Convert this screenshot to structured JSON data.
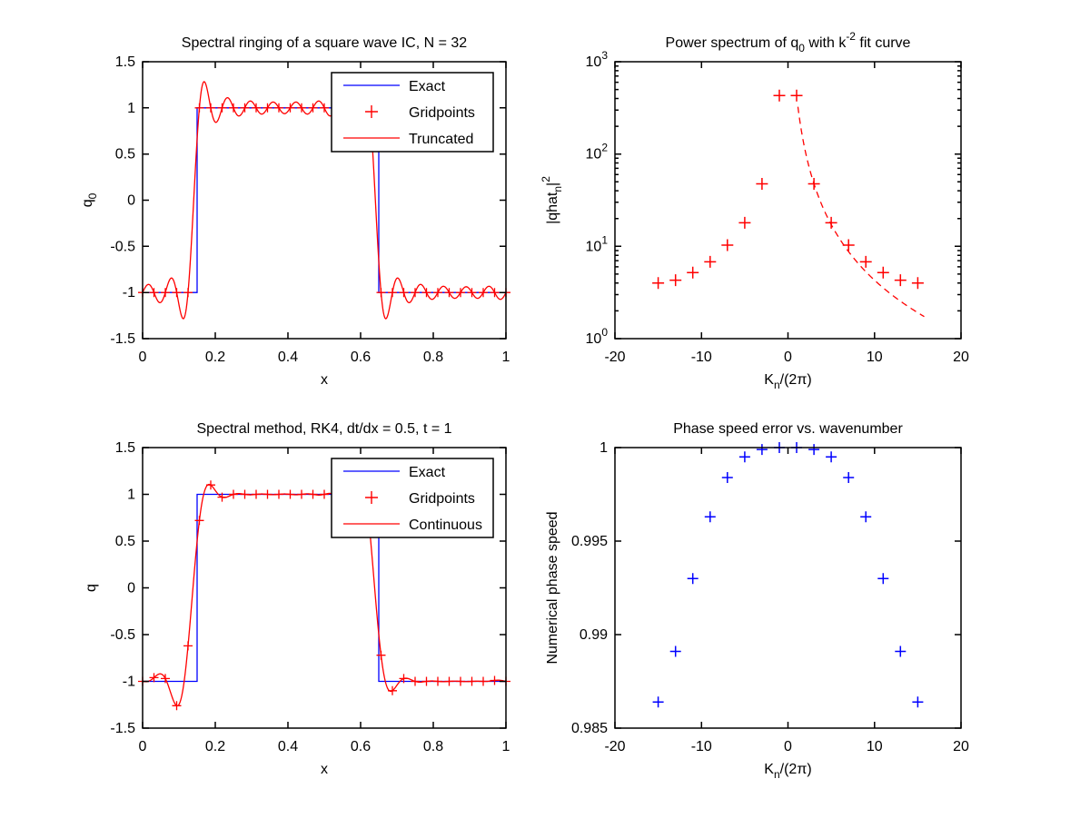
{
  "figure": {
    "background": "#ffffff",
    "axis_color": "#000000",
    "exact_color": "#0000ff",
    "numeric_color": "#ff0000",
    "phase_color": "#0000ff"
  },
  "chart_data": [
    {
      "id": "spectral-ringing",
      "position": "top-left",
      "type": "line",
      "title": [
        {
          "t": "Spectral ringing of a square wave IC, N = 32"
        }
      ],
      "xlabel": [
        {
          "t": "x"
        }
      ],
      "ylabel": [
        {
          "t": "q"
        },
        {
          "t": "0",
          "pos": "sub"
        }
      ],
      "xlim": [
        0,
        1
      ],
      "ylim": [
        -1.5,
        1.5
      ],
      "xticks": [
        {
          "v": 0,
          "l": "0"
        },
        {
          "v": 0.2,
          "l": "0.2"
        },
        {
          "v": 0.4,
          "l": "0.4"
        },
        {
          "v": 0.6,
          "l": "0.6"
        },
        {
          "v": 0.8,
          "l": "0.8"
        },
        {
          "v": 1,
          "l": "1"
        }
      ],
      "yticks": [
        {
          "v": -1.5,
          "l": "-1.5"
        },
        {
          "v": -1,
          "l": "-1"
        },
        {
          "v": -0.5,
          "l": "-0.5"
        },
        {
          "v": 0,
          "l": "0"
        },
        {
          "v": 0.5,
          "l": "0.5"
        },
        {
          "v": 1,
          "l": "1"
        },
        {
          "v": 1.5,
          "l": "1.5"
        }
      ],
      "grid_n": 32,
      "grid_samples": [
        -1,
        -1,
        -1,
        -1,
        -1,
        1,
        1,
        1,
        1,
        1,
        1,
        1,
        1,
        1,
        1,
        1,
        1,
        1,
        1,
        1,
        1,
        -1,
        -1,
        -1,
        -1,
        -1,
        -1,
        -1,
        -1,
        -1,
        -1,
        -1
      ],
      "series": [
        {
          "name": "Exact",
          "type": "polyline",
          "color": "#0000ff",
          "points": [
            [
              0,
              -1
            ],
            [
              0.15,
              -1
            ],
            [
              0.15,
              1
            ],
            [
              0.65,
              1
            ],
            [
              0.65,
              -1
            ],
            [
              1,
              -1
            ]
          ]
        },
        {
          "name": "Gridpoints",
          "type": "grid_markers",
          "marker": "plus",
          "size": 5,
          "color": "#ff0000"
        },
        {
          "name": "Truncated",
          "type": "grid_interp",
          "color": "#ff0000"
        }
      ],
      "legend": {
        "items": [
          {
            "label": "Exact",
            "swatch": "line",
            "color": "#0000ff"
          },
          {
            "label": "Gridpoints",
            "swatch": "plus",
            "color": "#ff0000"
          },
          {
            "label": "Truncated",
            "swatch": "line",
            "color": "#ff0000"
          }
        ]
      }
    },
    {
      "id": "power-spectrum",
      "position": "top-right",
      "type": "scatter",
      "title": [
        {
          "t": "Power spectrum of q"
        },
        {
          "t": "0",
          "pos": "sub"
        },
        {
          "t": " with k"
        },
        {
          "t": "-2",
          "pos": "sup"
        },
        {
          "t": " fit curve"
        }
      ],
      "xlabel": [
        {
          "t": "K"
        },
        {
          "t": "n",
          "pos": "sub"
        },
        {
          "t": "/(2π)"
        }
      ],
      "ylabel": [
        {
          "t": "|qhat"
        },
        {
          "t": "n",
          "pos": "sub"
        },
        {
          "t": "|"
        },
        {
          "t": "2",
          "pos": "sup"
        }
      ],
      "xlim": [
        -20,
        20
      ],
      "ylim": [
        1,
        1000
      ],
      "yscale": "log",
      "xticks": [
        {
          "v": -20,
          "l": "-20"
        },
        {
          "v": -10,
          "l": "-10"
        },
        {
          "v": 0,
          "l": "0"
        },
        {
          "v": 10,
          "l": "10"
        },
        {
          "v": 20,
          "l": "20"
        }
      ],
      "yticks": [
        {
          "v": 1,
          "segs": [
            {
              "t": "10"
            },
            {
              "t": "0",
              "pos": "sup"
            }
          ]
        },
        {
          "v": 10,
          "segs": [
            {
              "t": "10"
            },
            {
              "t": "1",
              "pos": "sup"
            }
          ]
        },
        {
          "v": 100,
          "segs": [
            {
              "t": "10"
            },
            {
              "t": "2",
              "pos": "sup"
            }
          ]
        },
        {
          "v": 1000,
          "segs": [
            {
              "t": "10"
            },
            {
              "t": "3",
              "pos": "sup"
            }
          ]
        }
      ],
      "series": [
        {
          "name": "spectrum-points",
          "type": "markers",
          "marker": "plus",
          "size": 6.5,
          "width": 1.5,
          "color": "#ff0000",
          "points": [
            [
              -15,
              4.0
            ],
            [
              -13,
              4.3
            ],
            [
              -11,
              5.2
            ],
            [
              -9,
              6.8
            ],
            [
              -7,
              10.3
            ],
            [
              -5,
              18
            ],
            [
              -3,
              47.5
            ],
            [
              -1,
              430
            ],
            [
              1,
              430
            ],
            [
              3,
              47.5
            ],
            [
              5,
              18
            ],
            [
              7,
              10.3
            ],
            [
              9,
              6.8
            ],
            [
              11,
              5.2
            ],
            [
              13,
              4.3
            ],
            [
              15,
              4.0
            ]
          ]
        },
        {
          "name": "k2-fit",
          "type": "power_fit",
          "color": "#ff0000",
          "dashed": true,
          "coefficient": 430,
          "exponent": -2,
          "k_range": [
            1.15,
            15.8
          ]
        }
      ]
    },
    {
      "id": "spectral-method",
      "position": "bottom-left",
      "type": "line",
      "title": [
        {
          "t": "Spectral method, RK4, dt/dx = 0.5, t = 1"
        }
      ],
      "xlabel": [
        {
          "t": "x"
        }
      ],
      "ylabel": [
        {
          "t": "q"
        }
      ],
      "xlim": [
        0,
        1
      ],
      "ylim": [
        -1.5,
        1.5
      ],
      "xticks": [
        {
          "v": 0,
          "l": "0"
        },
        {
          "v": 0.2,
          "l": "0.2"
        },
        {
          "v": 0.4,
          "l": "0.4"
        },
        {
          "v": 0.6,
          "l": "0.6"
        },
        {
          "v": 0.8,
          "l": "0.8"
        },
        {
          "v": 1,
          "l": "1"
        }
      ],
      "yticks": [
        {
          "v": -1.5,
          "l": "-1.5"
        },
        {
          "v": -1,
          "l": "-1"
        },
        {
          "v": -0.5,
          "l": "-0.5"
        },
        {
          "v": 0,
          "l": "0"
        },
        {
          "v": 0.5,
          "l": "0.5"
        },
        {
          "v": 1,
          "l": "1"
        },
        {
          "v": 1.5,
          "l": "1.5"
        }
      ],
      "grid_n": 32,
      "grid_samples": [
        -1,
        -0.96,
        -0.97,
        -1.26,
        -0.62,
        0.72,
        1.1,
        0.97,
        1,
        1,
        1,
        1,
        1,
        1,
        1,
        1,
        1,
        0.99,
        1,
        1.26,
        0.62,
        -0.72,
        -1.1,
        -0.97,
        -1,
        -1,
        -1,
        -1,
        -1,
        -1,
        -1,
        -0.99
      ],
      "series": [
        {
          "name": "Exact",
          "type": "polyline",
          "color": "#0000ff",
          "points": [
            [
              0,
              -1
            ],
            [
              0.15,
              -1
            ],
            [
              0.15,
              1
            ],
            [
              0.65,
              1
            ],
            [
              0.65,
              -1
            ],
            [
              1,
              -1
            ]
          ]
        },
        {
          "name": "Gridpoints",
          "type": "grid_markers",
          "marker": "plus",
          "size": 5,
          "color": "#ff0000"
        },
        {
          "name": "Continuous",
          "type": "grid_interp",
          "color": "#ff0000"
        }
      ],
      "legend": {
        "items": [
          {
            "label": "Exact",
            "swatch": "line",
            "color": "#0000ff"
          },
          {
            "label": "Gridpoints",
            "swatch": "plus",
            "color": "#ff0000"
          },
          {
            "label": "Continuous",
            "swatch": "line",
            "color": "#ff0000"
          }
        ]
      }
    },
    {
      "id": "phase-speed",
      "position": "bottom-right",
      "type": "scatter",
      "title": [
        {
          "t": "Phase speed error vs. wavenumber"
        }
      ],
      "xlabel": [
        {
          "t": "K"
        },
        {
          "t": "n",
          "pos": "sub"
        },
        {
          "t": "/(2π)"
        }
      ],
      "ylabel": [
        {
          "t": "Numerical phase speed"
        }
      ],
      "xlim": [
        -20,
        20
      ],
      "ylim": [
        0.985,
        1
      ],
      "xticks": [
        {
          "v": -20,
          "l": "-20"
        },
        {
          "v": -10,
          "l": "-10"
        },
        {
          "v": 0,
          "l": "0"
        },
        {
          "v": 10,
          "l": "10"
        },
        {
          "v": 20,
          "l": "20"
        }
      ],
      "yticks": [
        {
          "v": 0.985,
          "l": "0.985"
        },
        {
          "v": 0.99,
          "l": "0.99"
        },
        {
          "v": 0.995,
          "l": "0.995"
        },
        {
          "v": 1,
          "l": "1"
        }
      ],
      "series": [
        {
          "name": "phase-speed-points",
          "type": "markers",
          "marker": "plus",
          "size": 6,
          "width": 1.5,
          "color": "#0000ff",
          "points": [
            [
              -15,
              0.9864
            ],
            [
              -13,
              0.9891
            ],
            [
              -11,
              0.993
            ],
            [
              -9,
              0.9963
            ],
            [
              -7,
              0.9984
            ],
            [
              -5,
              0.9995
            ],
            [
              -3,
              0.9999
            ],
            [
              -1,
              1
            ],
            [
              1,
              1
            ],
            [
              3,
              0.9999
            ],
            [
              5,
              0.9995
            ],
            [
              7,
              0.9984
            ],
            [
              9,
              0.9963
            ],
            [
              11,
              0.993
            ],
            [
              13,
              0.9891
            ],
            [
              15,
              0.9864
            ]
          ]
        }
      ]
    }
  ]
}
